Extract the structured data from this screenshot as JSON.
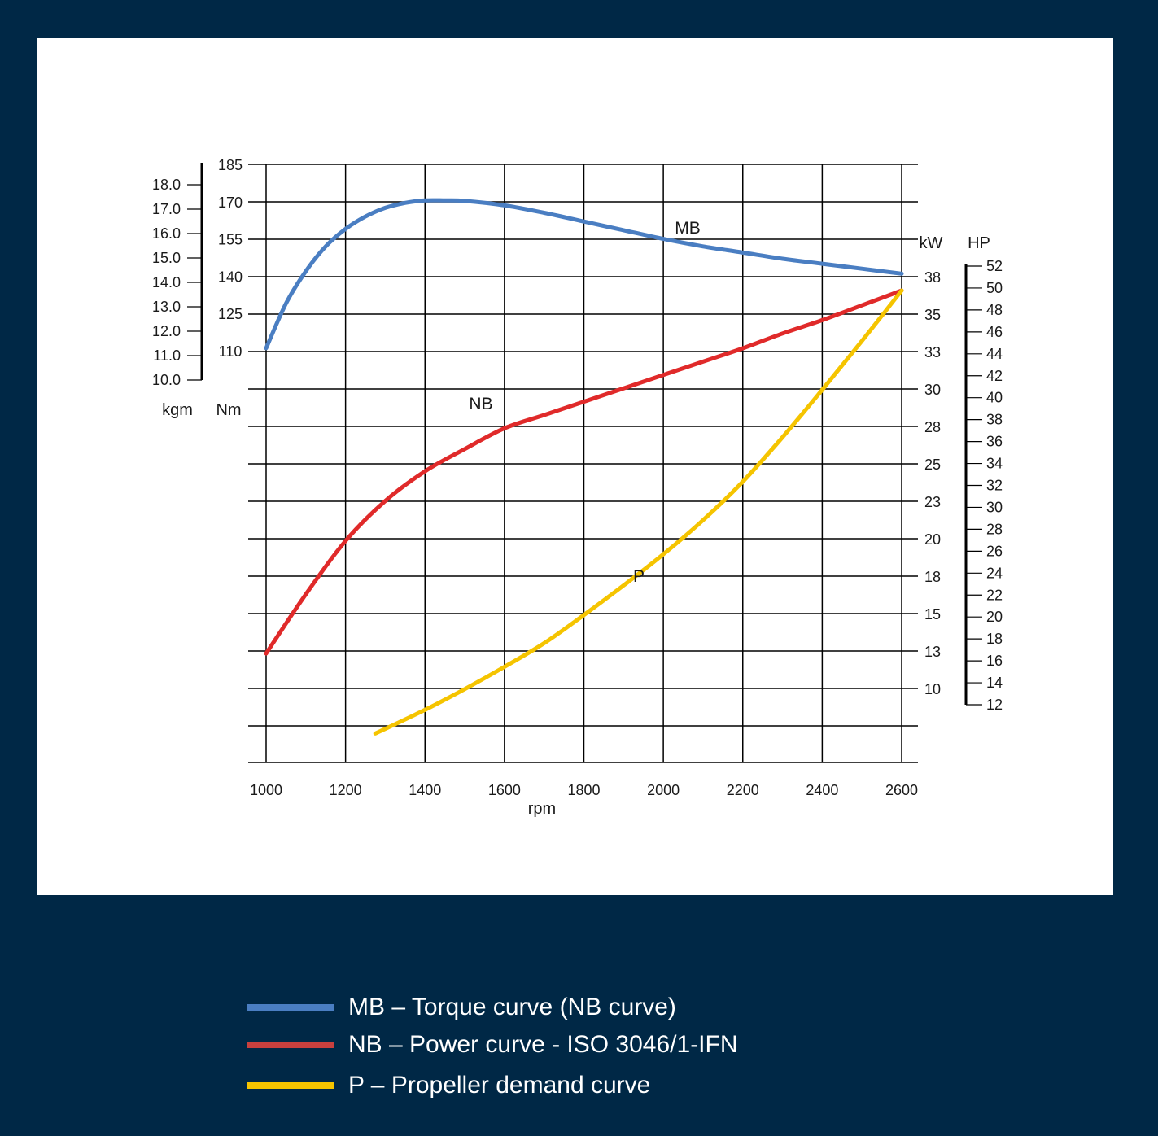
{
  "chart_data": {
    "type": "line",
    "x_axis": {
      "label": "rpm",
      "range": [
        1000,
        2600
      ],
      "ticks": [
        "1000",
        "1200",
        "1400",
        "1600",
        "1800",
        "2000",
        "2200",
        "2400",
        "2600"
      ]
    },
    "y_axes": {
      "torque_nm": {
        "label": "Nm",
        "range": [
          110,
          185
        ],
        "ticks": [
          "110",
          "125",
          "140",
          "155",
          "170",
          "185"
        ]
      },
      "torque_kgm": {
        "label": "kgm",
        "range": [
          10.0,
          18.0
        ],
        "ticks": [
          "10.0",
          "11.0",
          "12.0",
          "13.0",
          "14.0",
          "15.0",
          "16.0",
          "17.0",
          "18.0"
        ]
      },
      "power_kw": {
        "label": "kW",
        "ticks": [
          "38",
          "35",
          "33",
          "30",
          "28",
          "25",
          "23",
          "20",
          "18",
          "15",
          "13",
          "10"
        ]
      },
      "power_hp": {
        "label": "HP",
        "range": [
          12,
          52
        ],
        "ticks": [
          "52",
          "50",
          "48",
          "46",
          "44",
          "42",
          "40",
          "38",
          "36",
          "34",
          "32",
          "30",
          "28",
          "26",
          "24",
          "22",
          "20",
          "18",
          "16",
          "14",
          "12"
        ]
      }
    },
    "grid": true,
    "series": [
      {
        "name": "MB",
        "axis": "Nm",
        "color": "#4a7ec2",
        "x": [
          1000,
          1050,
          1100,
          1150,
          1200,
          1250,
          1300,
          1350,
          1400,
          1450,
          1500,
          1600,
          1700,
          1800,
          1900,
          2000,
          2100,
          2200,
          2300,
          2400,
          2500,
          2600
        ],
        "y": [
          111,
          129,
          142,
          152,
          159,
          164,
          167.5,
          169.5,
          170.5,
          170.5,
          170.3,
          168.5,
          165.5,
          162,
          158.5,
          155,
          152,
          149.5,
          147,
          145,
          143,
          141
        ]
      },
      {
        "name": "NB",
        "axis": "kW",
        "color": "#e02a2a",
        "x": [
          1000,
          1100,
          1200,
          1300,
          1400,
          1500,
          1600,
          1700,
          1800,
          1900,
          2000,
          2100,
          2200,
          2300,
          2400,
          2500,
          2600
        ],
        "y": [
          12.3,
          16.3,
          19.9,
          22.6,
          24.6,
          26.1,
          27.5,
          28.4,
          29.3,
          30.2,
          31.1,
          32.0,
          32.9,
          33.9,
          34.8,
          35.8,
          36.8
        ]
      },
      {
        "name": "P",
        "axis": "kW",
        "color": "#f5c400",
        "x": [
          1275,
          1400,
          1500,
          1600,
          1700,
          1800,
          1900,
          2000,
          2100,
          2200,
          2300,
          2400,
          2500,
          2600
        ],
        "y": [
          6.9,
          8.5,
          9.9,
          11.4,
          13.0,
          14.9,
          16.9,
          19.0,
          21.3,
          23.9,
          26.9,
          30.1,
          33.4,
          36.8
        ]
      }
    ],
    "labels": {
      "MB": "MB",
      "NB": "NB",
      "P": "P"
    },
    "legend": {
      "placement": "bottom",
      "entries": [
        {
          "text": "MB – Torque curve (NB curve)",
          "color": "#4a7ec2"
        },
        {
          "text": "NB – Power curve - ISO 3046/1-IFN",
          "color": "#c8403e"
        },
        {
          "text": "P – Propeller demand curve",
          "color": "#f5c400"
        }
      ]
    }
  }
}
